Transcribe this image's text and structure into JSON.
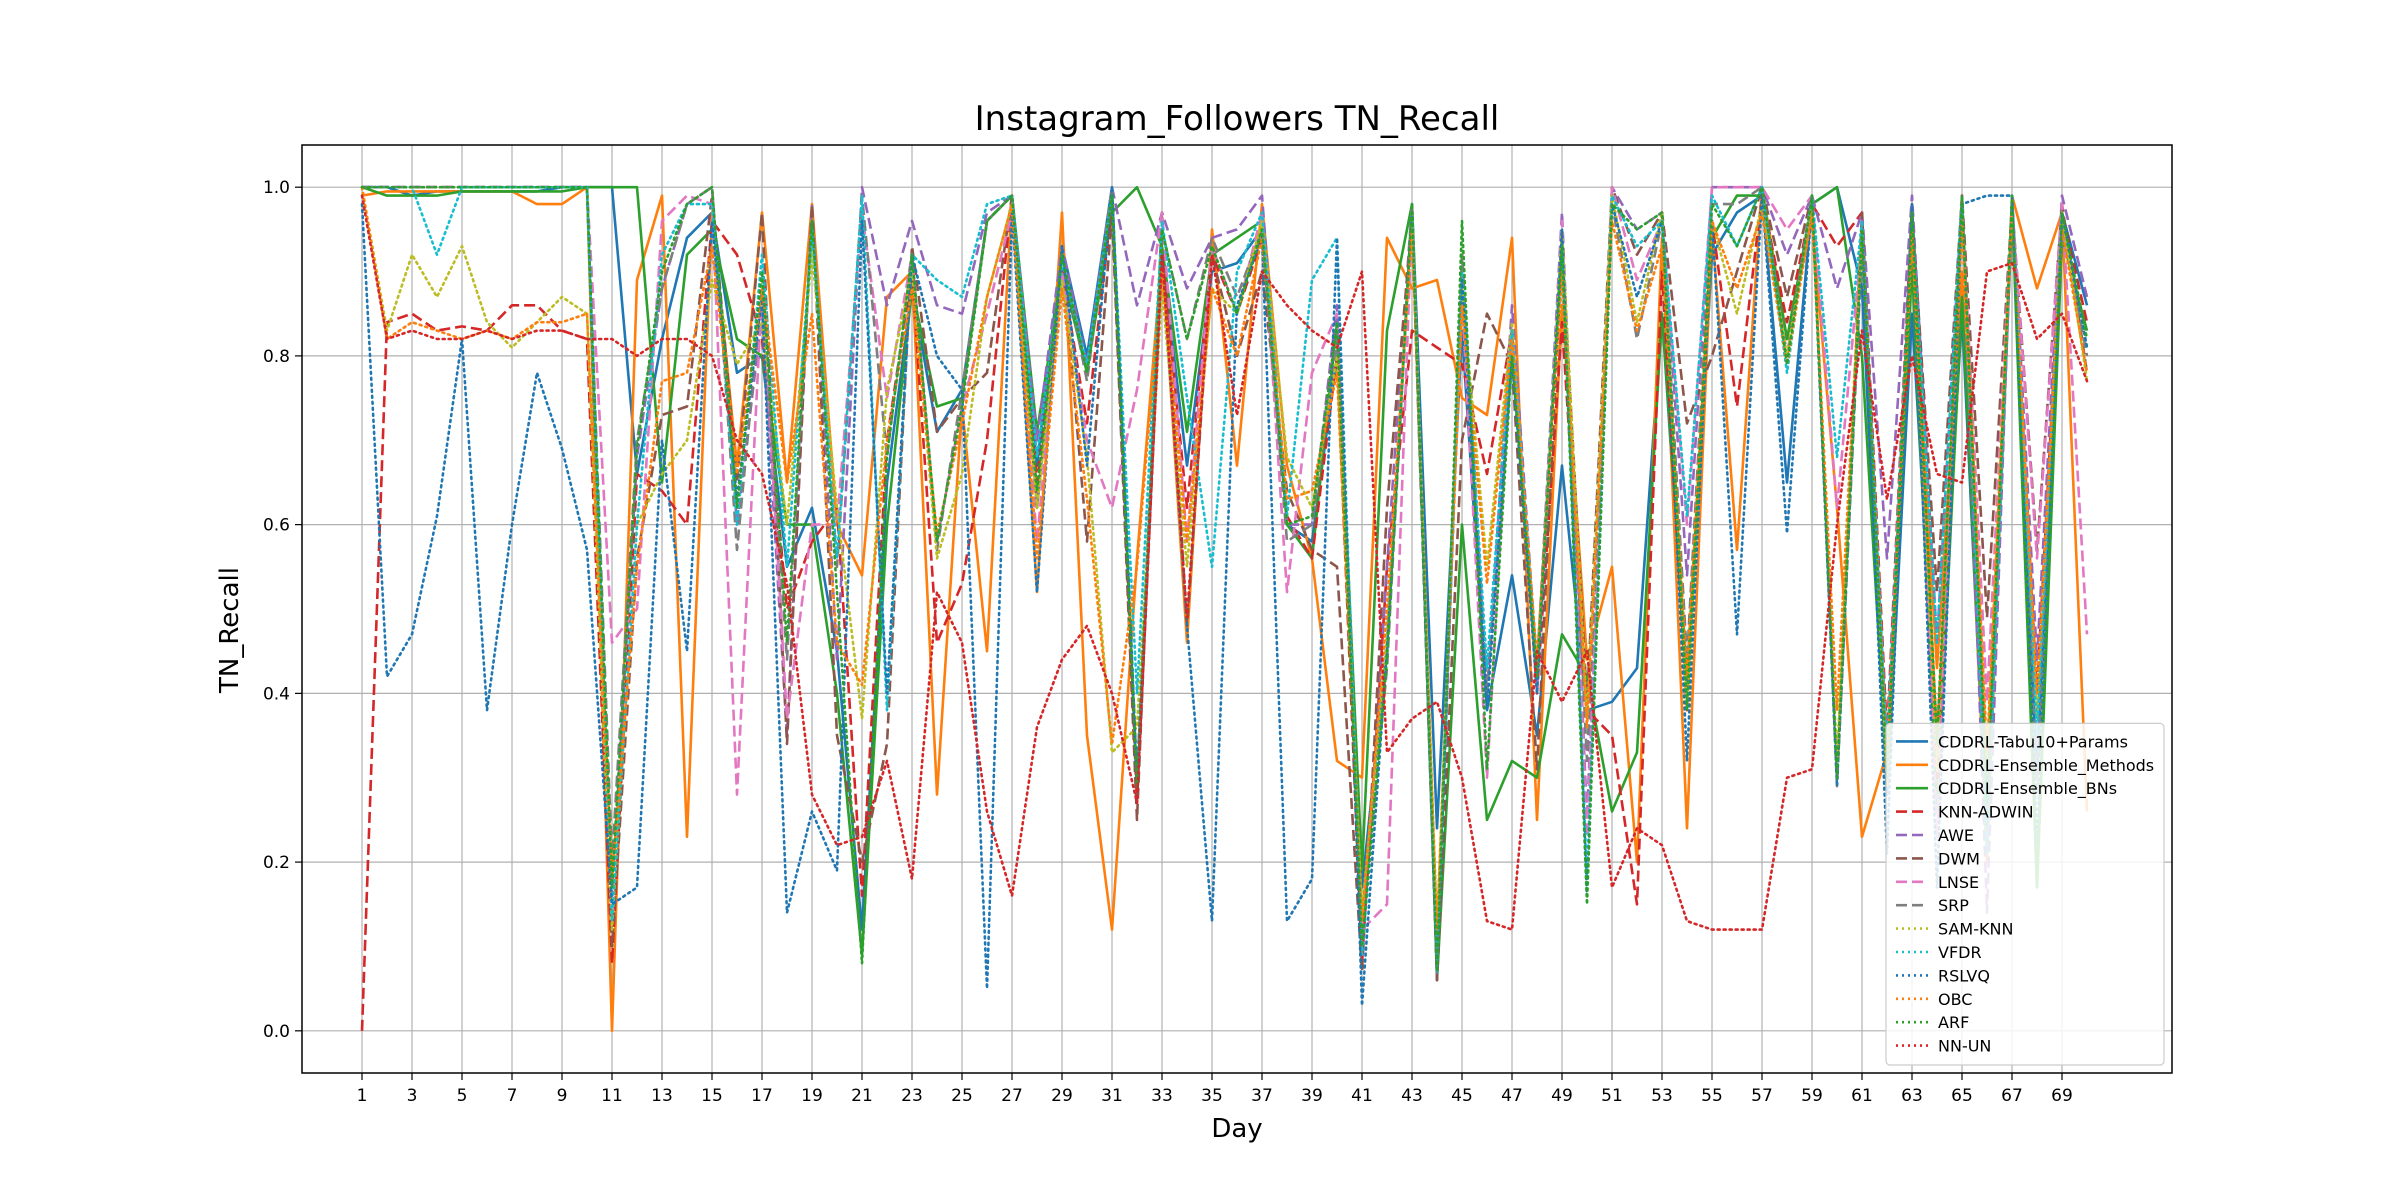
{
  "chart_data": {
    "type": "line",
    "title": "Instagram_Followers TN_Recall",
    "xlabel": "Day",
    "ylabel": "TN_Recall",
    "xlim": [
      -1.4,
      73.4
    ],
    "ylim": [
      -0.05,
      1.05
    ],
    "xticks": [
      1,
      3,
      5,
      7,
      9,
      11,
      13,
      15,
      17,
      19,
      21,
      23,
      25,
      27,
      29,
      31,
      33,
      35,
      37,
      39,
      41,
      43,
      45,
      47,
      49,
      51,
      53,
      55,
      57,
      59,
      61,
      63,
      65,
      67,
      69
    ],
    "yticks": [
      0.0,
      0.2,
      0.4,
      0.6,
      0.8,
      1.0
    ],
    "ytick_labels": [
      "0.0",
      "0.2",
      "0.4",
      "0.6",
      "0.8",
      "1.0"
    ],
    "grid": true,
    "legend_position": "lower-right",
    "x": [
      1,
      2,
      3,
      4,
      5,
      6,
      7,
      8,
      9,
      10,
      11,
      12,
      13,
      14,
      15,
      16,
      17,
      18,
      19,
      20,
      21,
      22,
      23,
      24,
      25,
      26,
      27,
      28,
      29,
      30,
      31,
      32,
      33,
      34,
      35,
      36,
      37,
      38,
      39,
      40,
      41,
      42,
      43,
      44,
      45,
      46,
      47,
      48,
      49,
      50,
      51,
      52,
      53,
      54,
      55,
      56,
      57,
      58,
      59,
      60,
      61,
      62,
      63,
      64,
      65,
      66,
      67,
      68,
      69,
      70
    ],
    "series": [
      {
        "name": "CDDRL-Tabu10+Params",
        "color": "#1f77b4",
        "style": "solid",
        "values": [
          1.0,
          1.0,
          0.99,
          0.995,
          0.995,
          0.995,
          0.995,
          0.995,
          1.0,
          1.0,
          1.0,
          0.66,
          0.82,
          0.94,
          0.97,
          0.78,
          0.8,
          0.55,
          0.62,
          0.45,
          0.12,
          0.65,
          0.88,
          0.71,
          0.76,
          0.96,
          0.99,
          0.67,
          0.93,
          0.8,
          1.0,
          0.28,
          0.92,
          0.67,
          0.9,
          0.91,
          0.95,
          0.6,
          0.58,
          0.8,
          0.17,
          0.45,
          0.98,
          0.24,
          0.83,
          0.38,
          0.54,
          0.35,
          0.67,
          0.38,
          0.39,
          0.43,
          0.85,
          0.4,
          0.92,
          0.97,
          0.99,
          0.65,
          0.98,
          1.0,
          0.88,
          0.28,
          0.85,
          0.35,
          0.85,
          0.22,
          0.97,
          0.3,
          0.97,
          0.86
        ]
      },
      {
        "name": "CDDRL-Ensemble_Methods",
        "color": "#ff7f0e",
        "style": "solid",
        "values": [
          0.99,
          0.995,
          0.995,
          0.995,
          0.995,
          0.995,
          0.995,
          0.98,
          0.98,
          1.0,
          0.0,
          0.89,
          0.99,
          0.23,
          0.97,
          0.67,
          0.97,
          0.65,
          0.98,
          0.6,
          0.54,
          0.87,
          0.9,
          0.28,
          0.74,
          0.45,
          0.99,
          0.52,
          0.97,
          0.35,
          0.12,
          0.56,
          0.92,
          0.46,
          0.95,
          0.67,
          0.98,
          0.67,
          0.56,
          0.32,
          0.3,
          0.94,
          0.88,
          0.89,
          0.75,
          0.73,
          0.94,
          0.25,
          0.86,
          0.44,
          0.55,
          0.2,
          0.94,
          0.24,
          0.95,
          0.57,
          1.0,
          0.82,
          0.96,
          0.62,
          0.23,
          0.33,
          0.93,
          0.43,
          0.9,
          0.2,
          0.99,
          0.88,
          0.97,
          0.26
        ]
      },
      {
        "name": "CDDRL-Ensemble_BNs",
        "color": "#2ca02c",
        "style": "solid",
        "values": [
          1.0,
          0.99,
          0.99,
          0.99,
          0.995,
          0.995,
          0.995,
          0.995,
          0.995,
          1.0,
          1.0,
          1.0,
          0.65,
          0.92,
          0.95,
          0.82,
          0.8,
          0.6,
          0.6,
          0.4,
          0.09,
          0.6,
          0.88,
          0.74,
          0.75,
          0.96,
          0.99,
          0.71,
          0.9,
          0.78,
          0.97,
          1.0,
          0.93,
          0.71,
          0.92,
          0.94,
          0.96,
          0.6,
          0.56,
          0.84,
          0.19,
          0.83,
          0.98,
          0.06,
          0.6,
          0.25,
          0.32,
          0.3,
          0.47,
          0.42,
          0.26,
          0.33,
          0.85,
          0.42,
          0.94,
          0.99,
          0.99,
          0.82,
          0.98,
          1.0,
          0.8,
          0.3,
          0.91,
          0.26,
          0.87,
          0.24,
          0.98,
          0.17,
          0.94,
          0.83
        ]
      },
      {
        "name": "KNN-ADWIN",
        "color": "#d62728",
        "style": "dashed",
        "values": [
          0.0,
          0.84,
          0.85,
          0.83,
          0.835,
          0.83,
          0.86,
          0.86,
          0.83,
          0.82,
          0.08,
          0.66,
          0.64,
          0.6,
          0.96,
          0.92,
          0.82,
          0.5,
          0.58,
          0.62,
          0.16,
          0.7,
          0.9,
          0.46,
          0.53,
          0.7,
          0.99,
          0.65,
          0.9,
          0.72,
          0.98,
          0.27,
          0.92,
          0.62,
          0.92,
          0.85,
          0.94,
          0.61,
          0.56,
          0.8,
          0.08,
          0.55,
          0.83,
          0.81,
          0.79,
          0.66,
          0.83,
          0.4,
          0.84,
          0.38,
          0.35,
          0.15,
          0.9,
          0.38,
          0.96,
          0.74,
          0.99,
          0.84,
          0.98,
          0.93,
          0.97,
          0.35,
          0.98,
          0.3,
          0.99,
          0.3,
          0.97,
          0.4,
          0.97,
          0.84
        ]
      },
      {
        "name": "AWE",
        "color": "#9467bd",
        "style": "dashed",
        "values": [
          1.0,
          1.0,
          1.0,
          1.0,
          1.0,
          1.0,
          1.0,
          1.0,
          1.0,
          1.0,
          0.16,
          0.68,
          0.88,
          0.98,
          1.0,
          0.6,
          0.85,
          0.35,
          0.98,
          0.44,
          1.0,
          0.86,
          0.96,
          0.86,
          0.85,
          0.97,
          0.99,
          0.7,
          0.93,
          0.79,
          1.0,
          0.86,
          0.97,
          0.88,
          0.94,
          0.95,
          0.99,
          0.6,
          0.6,
          0.86,
          0.09,
          0.55,
          0.98,
          0.06,
          0.9,
          0.4,
          0.86,
          0.43,
          0.97,
          0.25,
          1.0,
          0.95,
          0.97,
          0.54,
          1.0,
          1.0,
          1.0,
          0.92,
          0.99,
          0.88,
          0.97,
          0.56,
          0.99,
          0.46,
          0.99,
          0.14,
          0.99,
          0.44,
          0.99,
          0.87
        ]
      },
      {
        "name": "DWM",
        "color": "#8c564b",
        "style": "dashed",
        "values": [
          1.0,
          1.0,
          1.0,
          1.0,
          1.0,
          1.0,
          1.0,
          1.0,
          1.0,
          1.0,
          0.1,
          0.56,
          0.73,
          0.74,
          0.99,
          0.65,
          0.97,
          0.34,
          0.98,
          0.35,
          0.2,
          0.34,
          0.93,
          0.71,
          0.75,
          0.78,
          0.99,
          0.62,
          0.92,
          0.58,
          0.97,
          0.25,
          0.97,
          0.48,
          0.92,
          0.8,
          0.9,
          0.64,
          0.57,
          0.55,
          0.07,
          0.62,
          0.96,
          0.06,
          0.7,
          0.85,
          0.79,
          0.31,
          0.93,
          0.39,
          1.0,
          0.92,
          0.97,
          0.72,
          0.8,
          0.9,
          1.0,
          0.87,
          0.99,
          0.3,
          0.97,
          0.3,
          0.97,
          0.52,
          0.99,
          0.49,
          0.98,
          0.57,
          0.98,
          0.78
        ]
      },
      {
        "name": "LNSE",
        "color": "#e377c2",
        "style": "dashed",
        "values": [
          1.0,
          1.0,
          1.0,
          1.0,
          1.0,
          1.0,
          1.0,
          1.0,
          1.0,
          1.0,
          0.46,
          0.5,
          0.96,
          0.99,
          0.98,
          0.28,
          0.88,
          0.37,
          0.6,
          0.6,
          0.97,
          0.75,
          0.92,
          0.58,
          0.74,
          0.85,
          0.97,
          0.58,
          0.9,
          0.7,
          0.62,
          0.76,
          0.97,
          0.58,
          0.93,
          0.85,
          0.97,
          0.52,
          0.78,
          0.85,
          0.12,
          0.15,
          0.97,
          0.1,
          0.87,
          0.3,
          0.83,
          0.4,
          0.96,
          0.23,
          1.0,
          0.89,
          0.96,
          0.6,
          1.0,
          1.0,
          1.0,
          0.95,
          0.99,
          0.62,
          0.94,
          0.33,
          0.97,
          0.23,
          0.98,
          0.39,
          0.98,
          0.56,
          0.98,
          0.47
        ]
      },
      {
        "name": "SRP",
        "color": "#7f7f7f",
        "style": "dashed",
        "values": [
          1.0,
          1.0,
          1.0,
          1.0,
          1.0,
          1.0,
          1.0,
          1.0,
          1.0,
          1.0,
          0.2,
          0.7,
          0.88,
          0.98,
          1.0,
          0.57,
          0.88,
          0.44,
          0.96,
          0.55,
          0.99,
          0.68,
          0.92,
          0.57,
          0.76,
          0.96,
          0.99,
          0.62,
          0.92,
          0.77,
          1.0,
          0.3,
          0.95,
          0.82,
          0.94,
          0.87,
          0.95,
          0.58,
          0.6,
          0.82,
          0.12,
          0.43,
          0.98,
          0.08,
          0.92,
          0.4,
          0.8,
          0.43,
          0.93,
          0.32,
          0.98,
          0.82,
          0.96,
          0.44,
          0.98,
          0.98,
          1.0,
          0.8,
          0.99,
          0.29,
          0.93,
          0.33,
          0.96,
          0.33,
          0.98,
          0.26,
          0.98,
          0.28,
          0.96,
          0.8
        ]
      },
      {
        "name": "SAM-KNN",
        "color": "#bcbd22",
        "style": "dotted",
        "values": [
          1.0,
          0.83,
          0.92,
          0.87,
          0.93,
          0.84,
          0.81,
          0.84,
          0.87,
          0.85,
          0.12,
          0.6,
          0.66,
          0.7,
          0.89,
          0.79,
          0.84,
          0.6,
          0.92,
          0.62,
          0.37,
          0.76,
          0.9,
          0.56,
          0.66,
          0.87,
          0.98,
          0.62,
          0.89,
          0.68,
          0.33,
          0.36,
          0.88,
          0.55,
          0.88,
          0.85,
          0.96,
          0.68,
          0.62,
          0.8,
          0.14,
          0.47,
          0.97,
          0.12,
          0.88,
          0.55,
          0.84,
          0.42,
          0.95,
          0.37,
          0.99,
          0.84,
          0.97,
          0.38,
          0.96,
          0.85,
          0.98,
          0.8,
          0.98,
          0.32,
          0.95,
          0.29,
          0.95,
          0.31,
          0.98,
          0.32,
          0.98,
          0.37,
          0.97,
          0.77
        ]
      },
      {
        "name": "VFDR",
        "color": "#17becf",
        "style": "dotted",
        "values": [
          1.0,
          1.0,
          1.0,
          0.92,
          1.0,
          1.0,
          1.0,
          1.0,
          1.0,
          1.0,
          0.13,
          0.6,
          0.92,
          0.98,
          0.98,
          0.6,
          0.92,
          0.55,
          0.95,
          0.56,
          0.99,
          0.38,
          0.92,
          0.89,
          0.87,
          0.98,
          0.99,
          0.68,
          0.91,
          0.79,
          0.99,
          0.4,
          0.96,
          0.75,
          0.55,
          0.9,
          0.97,
          0.61,
          0.89,
          0.94,
          0.09,
          0.45,
          0.97,
          0.07,
          0.9,
          0.43,
          0.83,
          0.43,
          0.93,
          0.18,
          0.99,
          0.93,
          0.96,
          0.61,
          0.99,
          0.93,
          1.0,
          0.78,
          0.99,
          0.68,
          0.96,
          0.33,
          0.97,
          0.46,
          0.99,
          0.21,
          0.99,
          0.35,
          0.97,
          0.81
        ]
      },
      {
        "name": "RSLVQ",
        "color": "#1f77b4",
        "style": "dotted",
        "values": [
          0.98,
          0.42,
          0.47,
          0.61,
          0.82,
          0.38,
          0.6,
          0.78,
          0.69,
          0.57,
          0.15,
          0.17,
          0.7,
          0.45,
          0.96,
          0.63,
          0.87,
          0.14,
          0.26,
          0.19,
          0.96,
          0.4,
          0.92,
          0.8,
          0.76,
          0.05,
          0.97,
          0.52,
          0.93,
          0.67,
          1.0,
          0.3,
          0.92,
          0.48,
          0.13,
          0.86,
          0.94,
          0.13,
          0.18,
          0.94,
          0.03,
          0.45,
          0.97,
          0.07,
          0.89,
          0.38,
          0.8,
          0.4,
          0.95,
          0.16,
          0.98,
          0.87,
          0.96,
          0.32,
          0.96,
          0.47,
          0.99,
          0.59,
          0.98,
          0.29,
          0.94,
          0.21,
          0.98,
          0.17,
          0.98,
          0.99,
          0.99,
          0.22,
          0.97,
          0.81
        ]
      },
      {
        "name": "OBC",
        "color": "#ff7f0e",
        "style": "dotted",
        "values": [
          1.0,
          0.82,
          0.84,
          0.83,
          0.82,
          0.83,
          0.82,
          0.84,
          0.84,
          0.85,
          0.18,
          0.55,
          0.77,
          0.78,
          0.93,
          0.66,
          0.88,
          0.65,
          0.85,
          0.46,
          0.41,
          0.7,
          0.88,
          0.59,
          0.72,
          0.87,
          0.98,
          0.56,
          0.88,
          0.63,
          0.34,
          0.55,
          0.9,
          0.58,
          0.88,
          0.8,
          0.94,
          0.63,
          0.64,
          0.78,
          0.13,
          0.5,
          0.95,
          0.12,
          0.86,
          0.53,
          0.82,
          0.44,
          0.9,
          0.36,
          0.96,
          0.83,
          0.93,
          0.42,
          0.96,
          0.88,
          0.97,
          0.79,
          0.97,
          0.38,
          0.95,
          0.31,
          0.95,
          0.35,
          0.96,
          0.33,
          0.97,
          0.4,
          0.95,
          0.78
        ]
      },
      {
        "name": "ARF",
        "color": "#2ca02c",
        "style": "dotted",
        "values": [
          1.0,
          1.0,
          1.0,
          1.0,
          1.0,
          1.0,
          1.0,
          1.0,
          1.0,
          1.0,
          0.17,
          0.69,
          0.9,
          0.98,
          1.0,
          0.62,
          0.9,
          0.46,
          0.96,
          0.52,
          0.08,
          0.68,
          0.92,
          0.58,
          0.74,
          0.96,
          0.99,
          0.64,
          0.92,
          0.78,
          0.99,
          0.29,
          0.95,
          0.82,
          0.93,
          0.85,
          0.95,
          0.6,
          0.61,
          0.84,
          0.1,
          0.44,
          0.98,
          0.07,
          0.96,
          0.31,
          0.8,
          0.42,
          0.93,
          0.15,
          0.98,
          0.95,
          0.97,
          0.38,
          0.98,
          0.93,
          1.0,
          0.79,
          0.99,
          0.3,
          0.95,
          0.3,
          0.97,
          0.34,
          0.99,
          0.27,
          0.99,
          0.19,
          0.97,
          0.82
        ]
      },
      {
        "name": "NN-UN",
        "color": "#d62728",
        "style": "dotted",
        "values": [
          0.99,
          0.82,
          0.83,
          0.82,
          0.82,
          0.83,
          0.82,
          0.83,
          0.83,
          0.82,
          0.82,
          0.8,
          0.82,
          0.82,
          0.8,
          0.7,
          0.66,
          0.53,
          0.28,
          0.22,
          0.23,
          0.32,
          0.18,
          0.52,
          0.46,
          0.26,
          0.16,
          0.36,
          0.44,
          0.48,
          0.4,
          0.27,
          0.92,
          0.49,
          0.92,
          0.73,
          0.9,
          0.86,
          0.83,
          0.81,
          0.9,
          0.33,
          0.37,
          0.39,
          0.3,
          0.13,
          0.12,
          0.45,
          0.39,
          0.45,
          0.17,
          0.24,
          0.22,
          0.13,
          0.12,
          0.12,
          0.12,
          0.3,
          0.31,
          0.6,
          0.83,
          0.63,
          0.8,
          0.66,
          0.65,
          0.9,
          0.91,
          0.82,
          0.85,
          0.77
        ]
      }
    ]
  }
}
